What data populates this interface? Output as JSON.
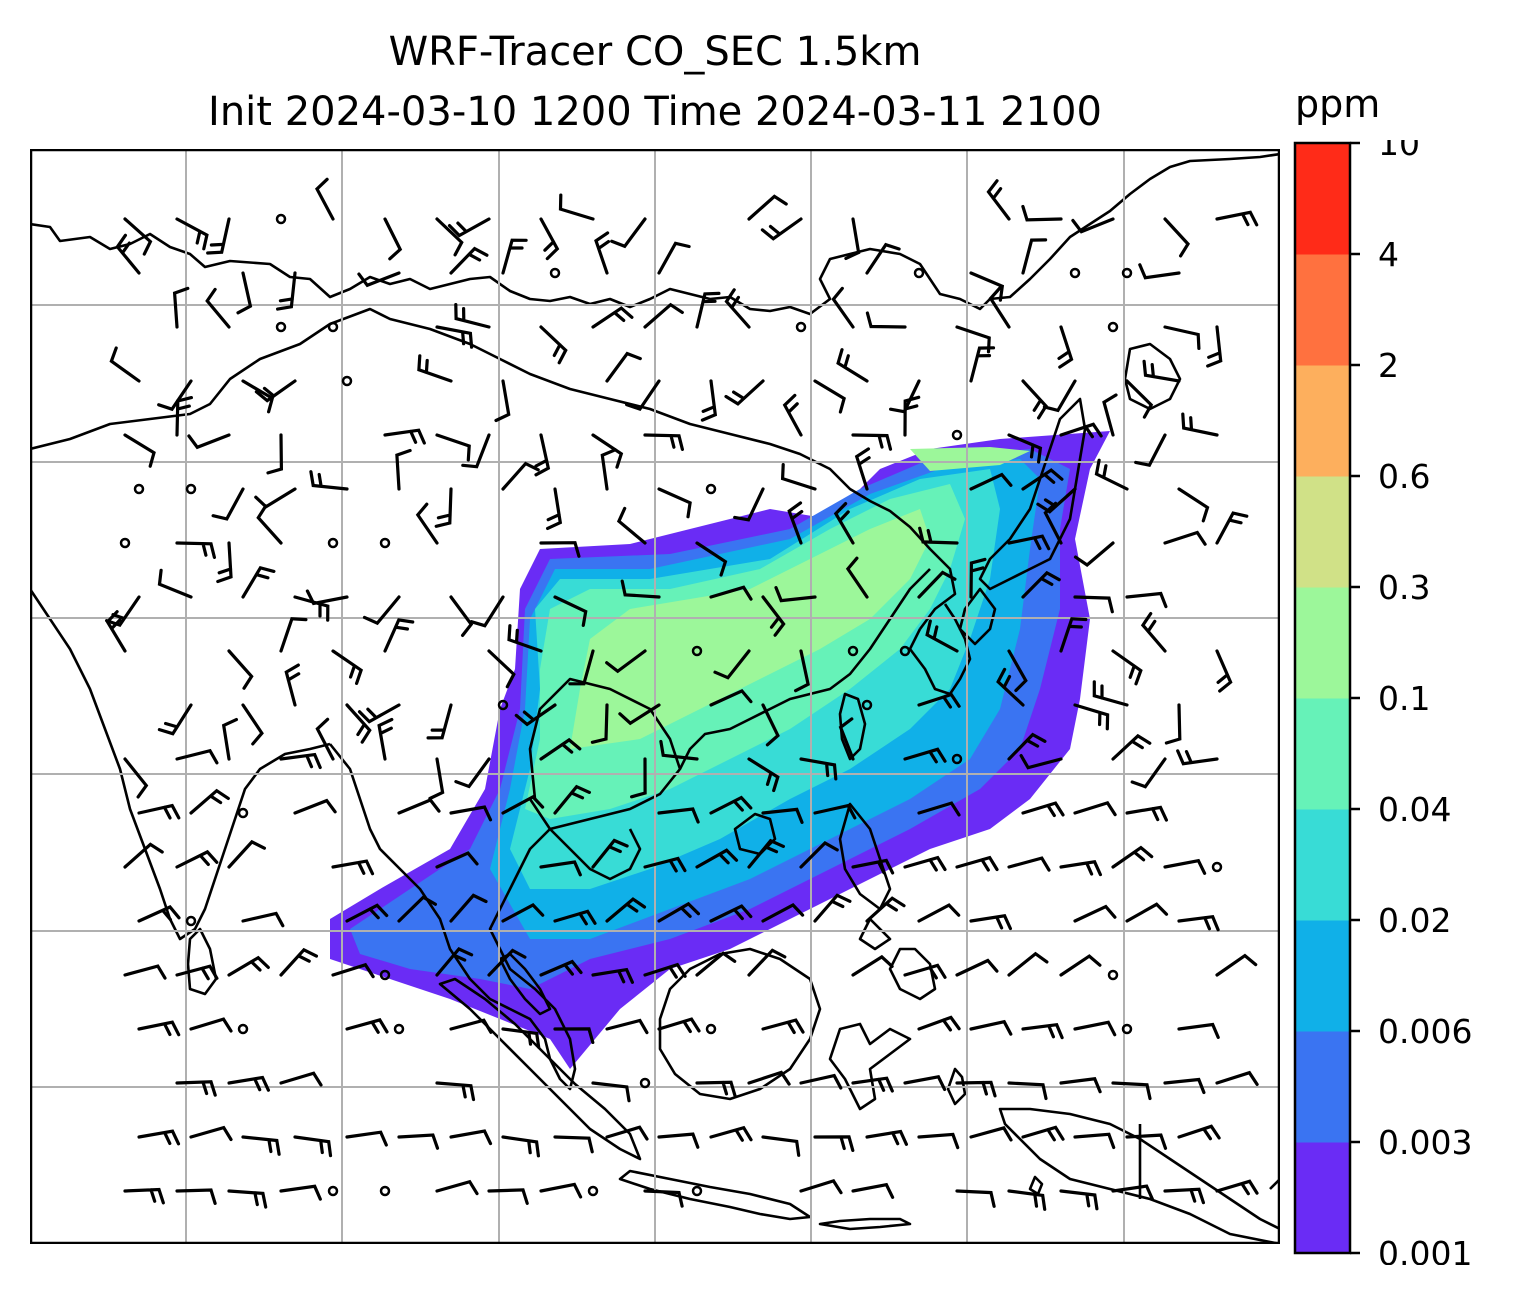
{
  "figure": {
    "title_line1": "WRF-Tracer CO_SEC 1.5km",
    "title_line2": "Init 2024-03-10 1200 Time 2024-03-11 2100"
  },
  "map": {
    "field": "CO_SEC tracer concentration",
    "level": "1.5km",
    "overlay": "wind barbs",
    "gridlines": true,
    "coastlines_color": "#000000",
    "grid_color": "#b0b0b0"
  },
  "colorbar": {
    "unit": "ppm",
    "tick_labels": [
      "0.001",
      "0.003",
      "0.006",
      "0.02",
      "0.04",
      "0.1",
      "0.3",
      "0.6",
      "2",
      "4",
      "10"
    ],
    "colors": [
      "#6a2cf5",
      "#3a74f2",
      "#10b0e8",
      "#38dcd6",
      "#66f2b8",
      "#9cf79a",
      "#d0e187",
      "#fdaf5d",
      "#ff713f",
      "#ff2b18"
    ]
  }
}
